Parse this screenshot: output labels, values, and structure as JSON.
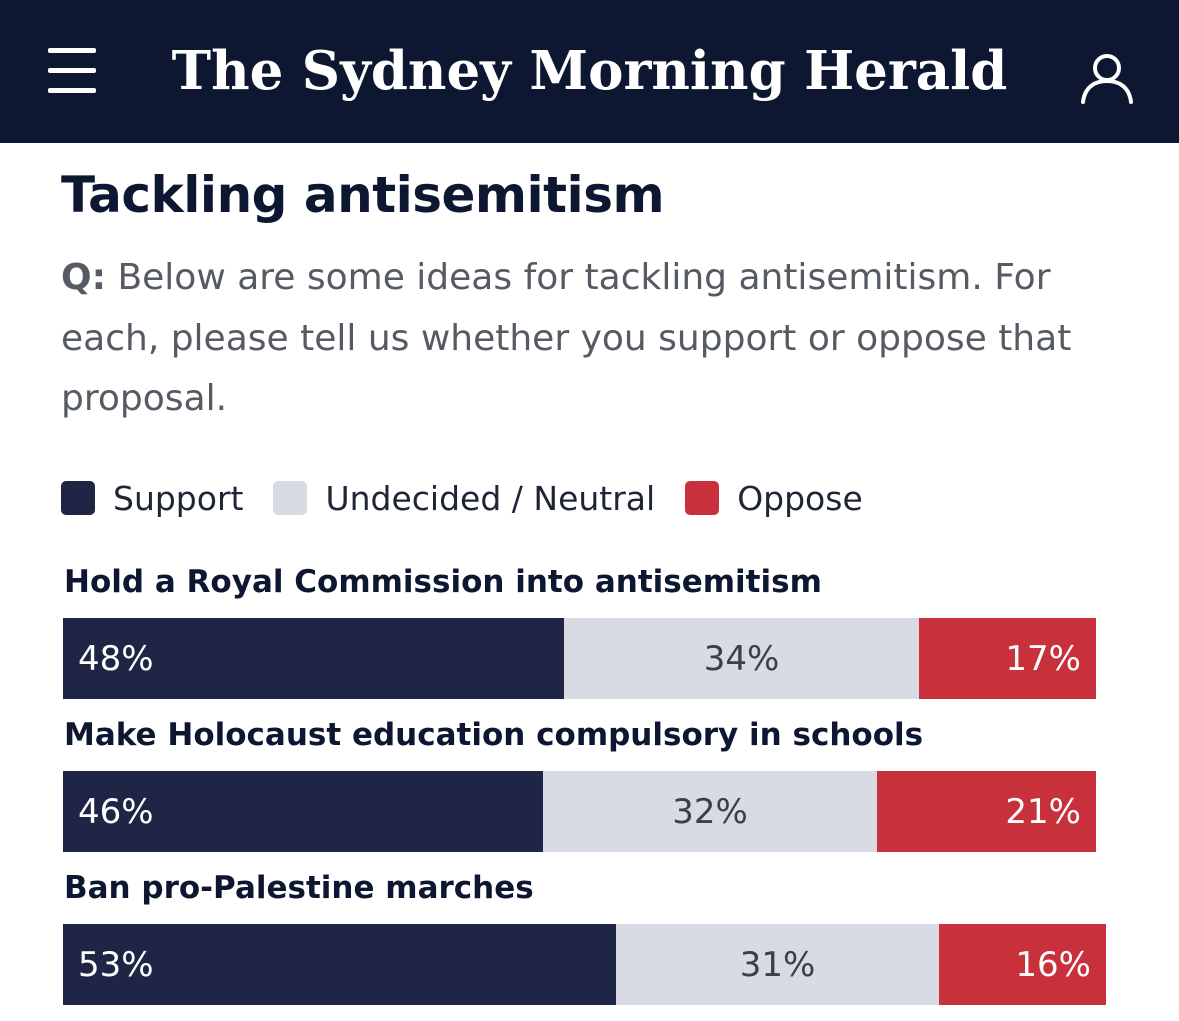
{
  "header": {
    "masthead": "The Sydney Morning Herald",
    "menu_icon": "hamburger-menu-icon",
    "account_icon": "user-account-icon",
    "background_color": "#0e1732"
  },
  "article": {
    "title": "Tackling antisemitism",
    "question_prefix": "Q:",
    "question_text": " Below are some ideas for tackling antisemitism. For each, please tell us whether you support or oppose that proposal."
  },
  "chart_data": {
    "type": "bar",
    "orientation": "horizontal",
    "stacked": true,
    "categories": [
      "Hold a Royal Commission into antisemitism",
      "Make Holocaust education compulsory in schools",
      "Ban pro-Palestine marches"
    ],
    "series": [
      {
        "name": "Support",
        "values": [
          48,
          46,
          53
        ],
        "labels": [
          "48%",
          "46%",
          "53%"
        ],
        "color": "#1e2545",
        "text_color": "#ffffff"
      },
      {
        "name": "Undecided / Neutral",
        "values": [
          34,
          32,
          31
        ],
        "labels": [
          "34%",
          "32%",
          "31%"
        ],
        "color": "#d9dbe4",
        "text_color": "#3a3f4b"
      },
      {
        "name": "Oppose",
        "values": [
          17,
          21,
          16
        ],
        "labels": [
          "17%",
          "21%",
          "16%"
        ],
        "color": "#c8303b",
        "text_color": "#ffffff"
      }
    ],
    "legend": {
      "position": "top-left",
      "items": [
        "Support",
        "Undecided / Neutral",
        "Oppose"
      ]
    },
    "grid": false,
    "title": "Tackling antisemitism"
  }
}
